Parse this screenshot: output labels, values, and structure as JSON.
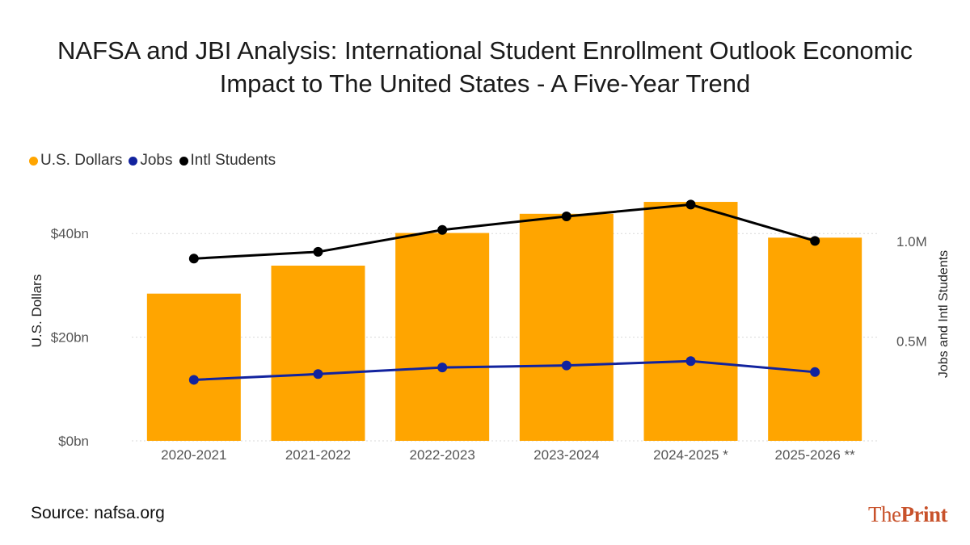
{
  "title": {
    "line1": "NAFSA and JBI Analysis: International Student Enrollment Outlook Economic",
    "line2": "Impact to The United States - A Five-Year Trend"
  },
  "legend": {
    "items": [
      {
        "label": "U.S. Dollars",
        "color": "#FFA500"
      },
      {
        "label": "Jobs",
        "color": "#12239E"
      },
      {
        "label": "Intl Students",
        "color": "#000000"
      }
    ]
  },
  "source": "Source: nafsa.org",
  "brand": {
    "part1": "The",
    "part2": "Print"
  },
  "chart_data": {
    "type": "bar",
    "categories": [
      "2020-2021",
      "2021-2022",
      "2022-2023",
      "2023-2024",
      "2024-2025 *",
      "2025-2026 **"
    ],
    "series": [
      {
        "name": "U.S. Dollars",
        "type": "bar",
        "axis": "left",
        "color": "#FFA500",
        "values": [
          28.4,
          33.8,
          40.1,
          43.8,
          46.1,
          39.2
        ]
      },
      {
        "name": "Jobs",
        "type": "line",
        "axis": "right",
        "color": "#12239E",
        "values": [
          306000,
          335000,
          368000,
          378000,
          400000,
          345000
        ]
      },
      {
        "name": "Intl Students",
        "type": "line",
        "axis": "right",
        "color": "#000000",
        "values": [
          914000,
          948000,
          1058000,
          1126000,
          1185000,
          1003000
        ]
      }
    ],
    "ylabel_left": "U.S. Dollars",
    "ylabel_right": "Jobs and Intl Students",
    "ylim_left": [
      0,
      50
    ],
    "ylim_right": [
      0,
      1.3
    ],
    "yticks_left": [
      {
        "value": 0,
        "label": "$0bn"
      },
      {
        "value": 20,
        "label": "$20bn"
      },
      {
        "value": 40,
        "label": "$40bn"
      }
    ],
    "yticks_right": [
      {
        "value": 0.5,
        "label": "0.5M"
      },
      {
        "value": 1.0,
        "label": "1.0M"
      }
    ],
    "grid": true
  }
}
